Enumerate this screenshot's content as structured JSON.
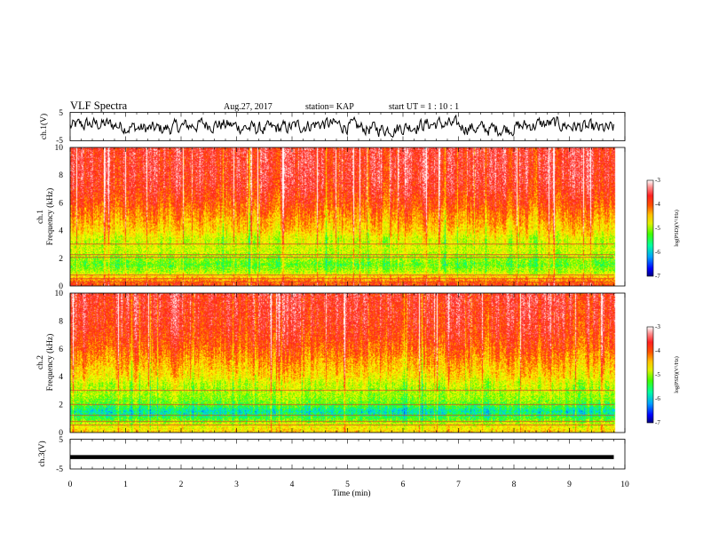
{
  "header": {
    "title": "VLF Spectra",
    "date": "Aug.27, 2017",
    "station": "station= KAP",
    "start": "start  UT =   1 : 10 : 1"
  },
  "colors": {
    "spectrogram_scale": [
      "#000080",
      "#0000ff",
      "#0060ff",
      "#00c8ff",
      "#00ff80",
      "#40ff00",
      "#c8f000",
      "#ffff00",
      "#ffb400",
      "#ff5000",
      "#ff2020",
      "#ff8080",
      "#ffffff"
    ],
    "waveform": "#000000",
    "axes": "#000000"
  },
  "chart_data": [
    {
      "type": "line",
      "panel": "ch1-waveform",
      "ylabel": "ch.1(V)",
      "ylim": [
        -5,
        5
      ],
      "yticks": [
        "5",
        "-5"
      ],
      "xlim": [
        0,
        10
      ],
      "trace": "noise",
      "mean": 0,
      "amplitude": 2.5,
      "x_end": 9.8
    },
    {
      "type": "heatmap",
      "panel": "ch1-spectrogram",
      "ylabel": "ch.1",
      "ylabel2": "Frequency (kHz)",
      "ylim": [
        0,
        10
      ],
      "yticks": [
        "0",
        "2",
        "4",
        "6",
        "8",
        "10"
      ],
      "xlim": [
        0,
        10
      ],
      "x_end": 9.8,
      "colorbar": {
        "label": "log(PSD)(V²/Hz)",
        "range": [
          -7,
          -3
        ],
        "ticks": [
          "-3",
          "-4",
          "-5",
          "-6",
          "-7"
        ]
      },
      "profile_kHz": [
        0,
        0.5,
        1,
        1.5,
        2,
        2.5,
        3,
        3.5,
        4,
        5,
        6,
        7,
        8,
        10
      ],
      "profile_logPSD": [
        -3.8,
        -4.3,
        -5.0,
        -5.3,
        -5.1,
        -4.9,
        -4.9,
        -4.8,
        -4.5,
        -4.2,
        -3.9,
        -3.7,
        -3.6,
        -3.6
      ],
      "lines_kHz": [
        0.25,
        0.5,
        0.75,
        2.05,
        2.25,
        3.0
      ]
    },
    {
      "type": "heatmap",
      "panel": "ch2-spectrogram",
      "ylabel": "ch.2",
      "ylabel2": "Frequency (kHz)",
      "ylim": [
        0,
        10
      ],
      "yticks": [
        "0",
        "2",
        "4",
        "6",
        "8",
        "10"
      ],
      "xlim": [
        0,
        10
      ],
      "x_end": 9.8,
      "colorbar": {
        "label": "log(PSD)(V²/Hz)",
        "range": [
          -7,
          -3
        ],
        "ticks": [
          "-3",
          "-4",
          "-5",
          "-6",
          "-7"
        ]
      },
      "profile_kHz": [
        0,
        0.5,
        1,
        1.5,
        2,
        2.5,
        3,
        3.5,
        4,
        5,
        6,
        7,
        8,
        10
      ],
      "profile_logPSD": [
        -4.5,
        -4.8,
        -5.4,
        -5.8,
        -5.3,
        -5.1,
        -5.0,
        -4.9,
        -4.6,
        -4.3,
        -4.0,
        -3.8,
        -3.7,
        -3.6
      ],
      "lines_kHz": [
        0.5,
        0.75,
        1.25,
        2.0,
        3.0
      ]
    },
    {
      "type": "line",
      "panel": "ch3-waveform",
      "ylabel": "ch.3(V)",
      "ylim": [
        -5,
        5
      ],
      "yticks": [
        "5",
        "-5"
      ],
      "xlim": [
        0,
        10
      ],
      "trace": "flat",
      "mean": -1,
      "amplitude": 0.2,
      "x_end": 9.8
    }
  ],
  "xaxis": {
    "label": "Time (min)",
    "range": [
      0,
      10
    ],
    "ticks": [
      "0",
      "1",
      "2",
      "3",
      "4",
      "5",
      "6",
      "7",
      "8",
      "9",
      "10"
    ]
  }
}
